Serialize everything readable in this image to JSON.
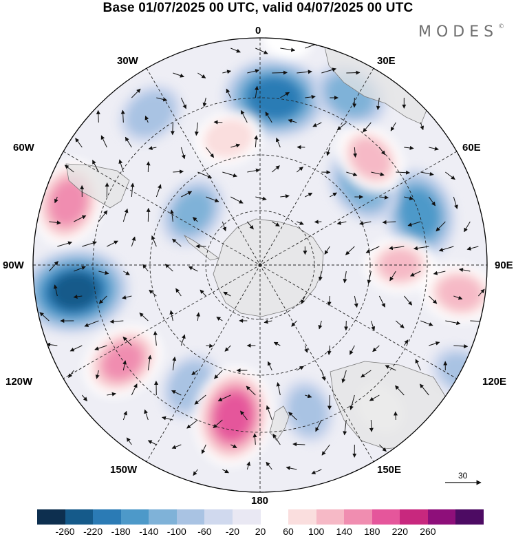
{
  "title": "Base 01/07/2025 00 UTC, valid 04/07/2025 00 UTC",
  "brand": "MODES",
  "brand_mark": "©",
  "longitude_labels": {
    "lon_0": "0",
    "lon_30e": "30E",
    "lon_60e": "60E",
    "lon_90e": "90E",
    "lon_120e": "120E",
    "lon_150e": "150E",
    "lon_180": "180",
    "lon_150w": "150W",
    "lon_120w": "120W",
    "lon_90w": "90W",
    "lon_60w": "60W",
    "lon_30w": "30W"
  },
  "reference_vector": {
    "label": "30"
  },
  "colorbar": {
    "colors": [
      "#0d2f4f",
      "#155a8a",
      "#2b7bb5",
      "#4d99c9",
      "#7fb2d8",
      "#a9c3e3",
      "#d0d9ee",
      "#e9e8f3",
      "#ffffff",
      "#fadede",
      "#f6b9c6",
      "#f08db0",
      "#e5569b",
      "#c8287e",
      "#8e0f7a",
      "#4d0b63"
    ],
    "tick_labels": [
      "-260",
      "-220",
      "-180",
      "-140",
      "-100",
      "-60",
      "-20",
      "20",
      "60",
      "100",
      "140",
      "180",
      "220",
      "260"
    ]
  },
  "chart_data": {
    "type": "heatmap",
    "projection": "polar stereographic (south pole centered)",
    "field": "geopotential height anomaly with wind vectors",
    "legend_placement": "bottom",
    "colorbar_range": [
      -280,
      280
    ],
    "colorbar_levels": [
      -260,
      -220,
      -180,
      -140,
      -100,
      -60,
      -20,
      20,
      60,
      100,
      140,
      180,
      220,
      260
    ],
    "anomaly_centers": [
      {
        "lon": -98,
        "lat": -48,
        "value": -220
      },
      {
        "lon": 5,
        "lat": -52,
        "value": -200
      },
      {
        "lon": 28,
        "lat": -47,
        "value": -120
      },
      {
        "lon": 72,
        "lat": -52,
        "value": -160
      },
      {
        "lon": 52,
        "lat": -60,
        "value": -130
      },
      {
        "lon": -52,
        "lat": -70,
        "value": -110
      },
      {
        "lon": -36,
        "lat": -48,
        "value": -90
      },
      {
        "lon": 118,
        "lat": -40,
        "value": -70
      },
      {
        "lon": -150,
        "lat": -58,
        "value": -90
      },
      {
        "lon": 162,
        "lat": -55,
        "value": -80
      },
      {
        "lon": -72,
        "lat": -45,
        "value": 150
      },
      {
        "lon": 46,
        "lat": -55,
        "value": 110
      },
      {
        "lon": -14,
        "lat": -60,
        "value": 90
      },
      {
        "lon": 98,
        "lat": -45,
        "value": 110
      },
      {
        "lon": 90,
        "lat": -58,
        "value": 100
      },
      {
        "lon": -170,
        "lat": -55,
        "value": 190
      },
      {
        "lon": -125,
        "lat": -52,
        "value": 140
      },
      {
        "lon": 140,
        "lat": -48,
        "value": 50
      },
      {
        "lon": 7,
        "lat": -40,
        "value": 40
      }
    ]
  }
}
